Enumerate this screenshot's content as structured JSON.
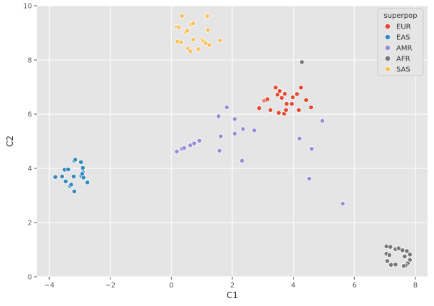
{
  "chart_data": {
    "type": "scatter",
    "title": "",
    "xlabel": "C1",
    "ylabel": "C2",
    "xlim": [
      -4.4,
      8.4
    ],
    "ylim": [
      0,
      10
    ],
    "xticks": [
      -4,
      -2,
      0,
      2,
      4,
      6,
      8
    ],
    "yticks": [
      0,
      2,
      4,
      6,
      8,
      10
    ],
    "grid": true,
    "legend": {
      "title": "superpop",
      "placement": "top-right"
    },
    "series": [
      {
        "name": "EUR",
        "color": "#e24a33",
        "points": [
          [
            3.05,
            6.5
          ],
          [
            3.1,
            6.52
          ],
          [
            3.15,
            6.55
          ],
          [
            2.88,
            6.22
          ],
          [
            3.25,
            6.15
          ],
          [
            3.42,
            6.98
          ],
          [
            3.48,
            6.72
          ],
          [
            3.55,
            6.85
          ],
          [
            3.52,
            6.05
          ],
          [
            3.62,
            6.6
          ],
          [
            3.72,
            6.75
          ],
          [
            3.7,
            6.02
          ],
          [
            3.76,
            6.15
          ],
          [
            3.78,
            6.38
          ],
          [
            3.95,
            6.38
          ],
          [
            3.98,
            6.62
          ],
          [
            4.12,
            6.74
          ],
          [
            4.18,
            6.15
          ],
          [
            4.25,
            6.98
          ],
          [
            4.42,
            6.52
          ],
          [
            4.58,
            6.25
          ]
        ]
      },
      {
        "name": "EAS",
        "color": "#348abd",
        "points": [
          [
            -3.8,
            3.68
          ],
          [
            -3.58,
            3.7
          ],
          [
            -3.5,
            3.95
          ],
          [
            -3.46,
            3.52
          ],
          [
            -3.38,
            3.96
          ],
          [
            -3.32,
            3.35
          ],
          [
            -3.28,
            3.4
          ],
          [
            -3.2,
            3.7
          ],
          [
            -3.18,
            4.28
          ],
          [
            -3.15,
            4.32
          ],
          [
            -3.18,
            3.15
          ],
          [
            -2.96,
            4.23
          ],
          [
            -2.95,
            3.72
          ],
          [
            -2.9,
            3.86
          ],
          [
            -2.88,
            3.66
          ],
          [
            -2.9,
            4.02
          ],
          [
            -2.92,
            3.8
          ],
          [
            -2.75,
            3.48
          ]
        ]
      },
      {
        "name": "AMR",
        "color": "#988ed5",
        "points": [
          [
            0.18,
            4.62
          ],
          [
            0.35,
            4.72
          ],
          [
            0.42,
            4.75
          ],
          [
            0.62,
            4.85
          ],
          [
            0.75,
            4.92
          ],
          [
            0.92,
            5.02
          ],
          [
            1.55,
            5.92
          ],
          [
            1.82,
            6.25
          ],
          [
            1.62,
            5.18
          ],
          [
            1.58,
            4.65
          ],
          [
            2.08,
            5.82
          ],
          [
            2.08,
            5.28
          ],
          [
            2.35,
            5.45
          ],
          [
            2.72,
            5.4
          ],
          [
            2.32,
            4.28
          ],
          [
            4.2,
            5.1
          ],
          [
            4.95,
            5.75
          ],
          [
            4.6,
            4.72
          ],
          [
            4.52,
            3.62
          ],
          [
            5.62,
            2.7
          ]
        ]
      },
      {
        "name": "AFR",
        "color": "#777777",
        "points": [
          [
            4.28,
            7.92
          ],
          [
            7.05,
            1.12
          ],
          [
            7.18,
            1.1
          ],
          [
            7.35,
            1.02
          ],
          [
            7.45,
            1.05
          ],
          [
            7.58,
            0.98
          ],
          [
            7.72,
            0.95
          ],
          [
            7.82,
            0.82
          ],
          [
            7.82,
            0.62
          ],
          [
            7.75,
            0.5
          ],
          [
            7.68,
            0.42
          ],
          [
            7.62,
            0.4
          ],
          [
            7.35,
            0.45
          ],
          [
            7.2,
            0.44
          ],
          [
            7.08,
            0.58
          ],
          [
            7.05,
            0.85
          ],
          [
            7.15,
            0.8
          ],
          [
            7.65,
            0.75
          ]
        ]
      },
      {
        "name": "SAS",
        "color": "#fbc15e",
        "points": [
          [
            0.18,
            9.22
          ],
          [
            0.25,
            9.2
          ],
          [
            0.35,
            9.62
          ],
          [
            0.2,
            8.68
          ],
          [
            0.32,
            8.65
          ],
          [
            0.48,
            9.02
          ],
          [
            0.52,
            9.08
          ],
          [
            0.55,
            8.42
          ],
          [
            0.62,
            8.32
          ],
          [
            0.65,
            9.32
          ],
          [
            0.72,
            9.35
          ],
          [
            0.72,
            8.75
          ],
          [
            0.88,
            8.4
          ],
          [
            1.02,
            8.75
          ],
          [
            1.05,
            8.68
          ],
          [
            1.12,
            8.62
          ],
          [
            1.18,
            9.62
          ],
          [
            1.2,
            9.1
          ],
          [
            1.25,
            8.55
          ],
          [
            1.6,
            8.72
          ]
        ]
      }
    ]
  }
}
